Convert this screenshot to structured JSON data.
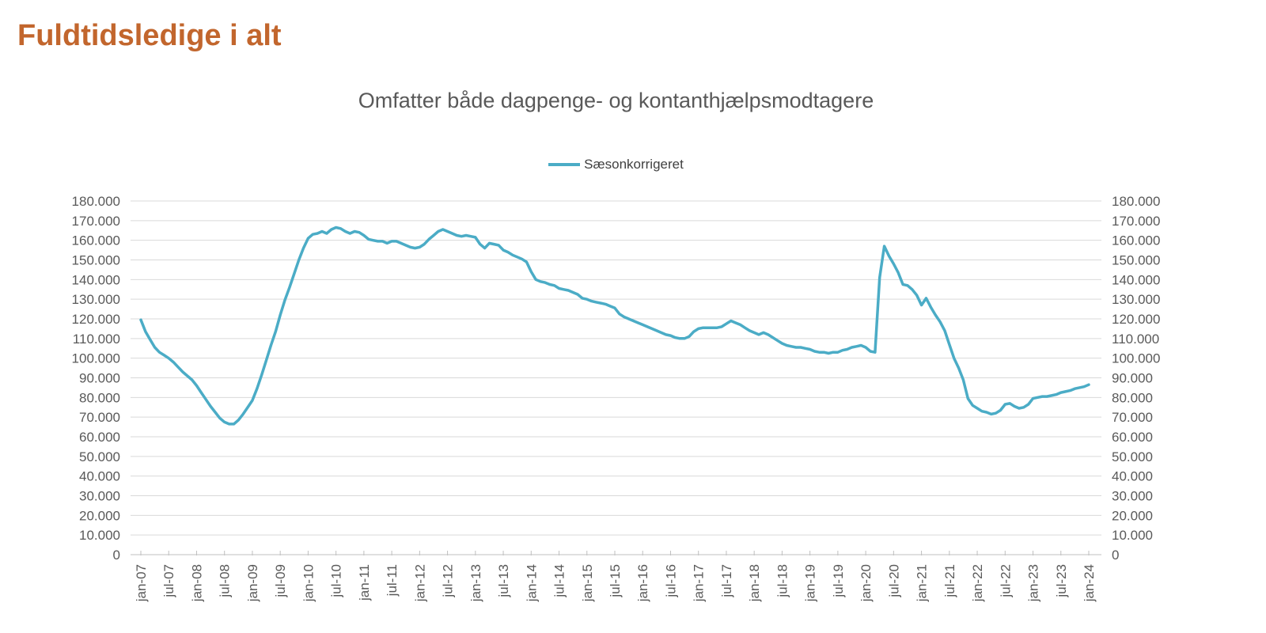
{
  "header": {
    "title": "Fuldtidsledige i alt"
  },
  "chart": {
    "title": "Omfatter både dagpenge- og kontanthjælpsmodtagere",
    "legend": [
      {
        "label": "Sæsonkorrigeret",
        "color": "#4BACC6"
      }
    ]
  },
  "colors": {
    "page_title": "#C2662D",
    "chart_title_text": "#595959",
    "axis_text": "#595959",
    "legend_text": "#404040",
    "gridline": "#D9D9D9",
    "axis_line": "#BFBFBF",
    "series_line": "#4BACC6"
  },
  "chart_data": {
    "type": "line",
    "title": "Omfatter både dagpenge- og kontanthjælpsmodtagere",
    "series_name": "Sæsonkorrigeret",
    "frequency": "monthly",
    "x_start": "jan-07",
    "x_end": "jan-24",
    "ylim": [
      0,
      180000
    ],
    "y_tick_step": 10000,
    "grid": "horizontal",
    "legend_position": "top-center",
    "y_tick_labels": [
      "180.000",
      "170.000",
      "160.000",
      "150.000",
      "140.000",
      "130.000",
      "120.000",
      "110.000",
      "100.000",
      "90.000",
      "80.000",
      "70.000",
      "60.000",
      "50.000",
      "40.000",
      "30.000",
      "20.000",
      "10.000",
      "0"
    ],
    "x_tick_labels": [
      "jan-07",
      "jul-07",
      "jan-08",
      "jul-08",
      "jan-09",
      "jul-09",
      "jan-10",
      "jul-10",
      "jan-11",
      "jul-11",
      "jan-12",
      "jul-12",
      "jan-13",
      "jul-13",
      "jan-14",
      "jul-14",
      "jan-15",
      "jul-15",
      "jan-16",
      "jul-16",
      "jan-17",
      "jul-17",
      "jan-18",
      "jul-18",
      "jan-19",
      "jul-19",
      "jan-20",
      "jul-20",
      "jan-21",
      "jul-21",
      "jan-22",
      "jul-22",
      "jan-23",
      "jul-23",
      "jan-24"
    ],
    "values": [
      119500,
      113500,
      109500,
      105500,
      103000,
      101500,
      100000,
      98000,
      95500,
      93000,
      91000,
      89000,
      86000,
      82500,
      79000,
      75500,
      72500,
      69500,
      67500,
      66500,
      66500,
      68500,
      71500,
      75000,
      78500,
      84500,
      91500,
      99000,
      106500,
      113500,
      122000,
      129500,
      136000,
      143000,
      150000,
      156000,
      161000,
      163000,
      163500,
      164500,
      163500,
      165500,
      166500,
      166000,
      164500,
      163500,
      164500,
      164000,
      162500,
      160500,
      160000,
      159500,
      159500,
      158500,
      159500,
      159500,
      158500,
      157500,
      156500,
      156000,
      156500,
      158000,
      160500,
      162500,
      164500,
      165500,
      164500,
      163500,
      162500,
      162000,
      162500,
      162000,
      161500,
      158000,
      156000,
      158500,
      158000,
      157500,
      155000,
      154000,
      152500,
      151500,
      150500,
      149000,
      144000,
      140000,
      139000,
      138500,
      137500,
      137000,
      135500,
      135000,
      134500,
      133500,
      132500,
      130500,
      130000,
      129000,
      128500,
      128000,
      127500,
      126500,
      125500,
      122500,
      121000,
      120000,
      119000,
      118000,
      117000,
      116000,
      115000,
      114000,
      113000,
      112000,
      111500,
      110500,
      110000,
      110000,
      111000,
      113500,
      115000,
      115500,
      115500,
      115500,
      115500,
      116000,
      117500,
      119000,
      118000,
      117000,
      115500,
      114000,
      113000,
      112000,
      113000,
      112000,
      110500,
      109000,
      107500,
      106500,
      106000,
      105500,
      105500,
      105000,
      104500,
      103500,
      103000,
      103000,
      102500,
      103000,
      103000,
      104000,
      104500,
      105500,
      106000,
      106500,
      105500,
      103500,
      103000,
      141000,
      157000,
      152000,
      148000,
      143500,
      137500,
      137000,
      135000,
      132000,
      127000,
      130500,
      126000,
      122000,
      118500,
      114000,
      107000,
      100000,
      95000,
      89000,
      79500,
      76000,
      74500,
      73000,
      72500,
      71500,
      72000,
      73500,
      76500,
      77000,
      75500,
      74500,
      75000,
      76500,
      79500,
      80000,
      80500,
      80500,
      81000,
      81500,
      82500,
      83000,
      83500,
      84500,
      85000,
      85500,
      86500
    ]
  }
}
